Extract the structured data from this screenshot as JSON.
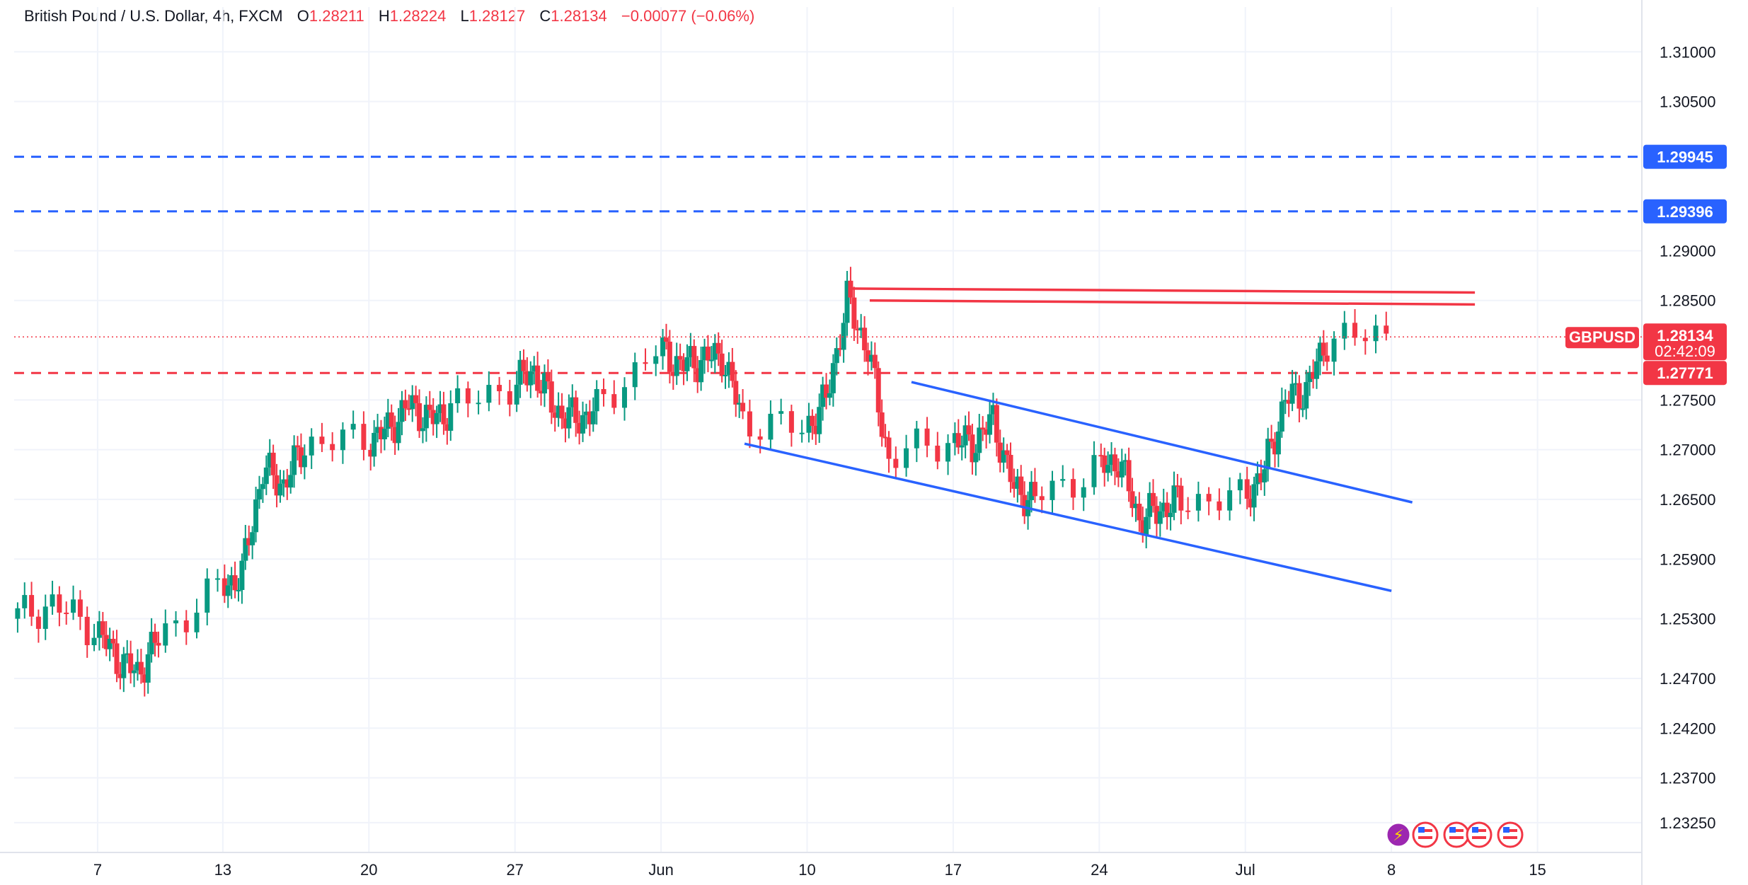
{
  "header": {
    "symbol": "British Pound / U.S. Dollar",
    "interval": "4h",
    "exchange": "FXCM",
    "open_label": "O",
    "open": "1.28211",
    "high_label": "H",
    "high": "1.28224",
    "low_label": "L",
    "low": "1.28127",
    "close_label": "C",
    "close": "1.28134",
    "change": "−0.00077 (−0.06%)"
  },
  "colors": {
    "up": "#089981",
    "down": "#f23645",
    "blue": "#2962ff",
    "red": "#f23645",
    "grid": "#f0f3fa"
  },
  "chart_data": {
    "type": "candlestick",
    "y_ticks": [
      "1.31000",
      "1.30500",
      "1.29000",
      "1.28500",
      "1.27500",
      "1.27000",
      "1.26500",
      "1.25900",
      "1.25300",
      "1.24700",
      "1.24200",
      "1.23700",
      "1.23250"
    ],
    "x_ticks": [
      {
        "label": "7",
        "date": "2024-05-07"
      },
      {
        "label": "13",
        "date": "2024-05-13"
      },
      {
        "label": "20",
        "date": "2024-05-20"
      },
      {
        "label": "27",
        "date": "2024-05-27"
      },
      {
        "label": "Jun",
        "date": "2024-06-03"
      },
      {
        "label": "10",
        "date": "2024-06-10"
      },
      {
        "label": "17",
        "date": "2024-06-17"
      },
      {
        "label": "24",
        "date": "2024-06-24"
      },
      {
        "label": "Jul",
        "date": "2024-07-01"
      },
      {
        "label": "8",
        "date": "2024-07-08"
      },
      {
        "label": "15",
        "date": "2024-07-15"
      }
    ],
    "y_range": [
      1.2295,
      1.3145
    ],
    "x_range": [
      "2024-05-03",
      "2024-07-20"
    ],
    "price_tags": [
      {
        "label": "1.29945",
        "value": 1.29945,
        "color": "#2962ff",
        "style": "dashed"
      },
      {
        "label": "1.29396",
        "value": 1.29396,
        "color": "#2962ff",
        "style": "dashed"
      },
      {
        "label": "1.27771",
        "value": 1.27771,
        "color": "#f23645",
        "style": "dashed"
      }
    ],
    "current": {
      "symbol": "GBPUSD",
      "price": "1.28134",
      "countdown": "02:42:09",
      "value": 1.28134
    },
    "trend_lines": [
      {
        "color": "#f23645",
        "from": {
          "date": "2024-06-12",
          "value": 1.2862
        },
        "to": {
          "date": "2024-07-12",
          "value": 1.2858
        }
      },
      {
        "color": "#f23645",
        "from": {
          "date": "2024-06-13",
          "value": 1.285
        },
        "to": {
          "date": "2024-07-12",
          "value": 1.2846
        }
      },
      {
        "color": "#2962ff",
        "from": {
          "date": "2024-06-15",
          "value": 1.2768
        },
        "to": {
          "date": "2024-07-09",
          "value": 1.2647
        }
      },
      {
        "color": "#2962ff",
        "from": {
          "date": "2024-06-07",
          "value": 1.2706
        },
        "to": {
          "date": "2024-07-08",
          "value": 1.2558
        }
      }
    ],
    "series": [
      {
        "name": "GBPUSD",
        "points": [
          {
            "date": "2024-05-03",
            "close": 1.253
          },
          {
            "date": "2024-05-05",
            "close": 1.2545
          },
          {
            "date": "2024-05-07",
            "close": 1.252
          },
          {
            "date": "2024-05-08",
            "close": 1.249
          },
          {
            "date": "2024-05-09",
            "close": 1.2475
          },
          {
            "date": "2024-05-10",
            "close": 1.251
          },
          {
            "date": "2024-05-13",
            "close": 1.256
          },
          {
            "date": "2024-05-14",
            "close": 1.2575
          },
          {
            "date": "2024-05-15",
            "close": 1.268
          },
          {
            "date": "2024-05-16",
            "close": 1.2665
          },
          {
            "date": "2024-05-17",
            "close": 1.2705
          },
          {
            "date": "2024-05-20",
            "close": 1.271
          },
          {
            "date": "2024-05-21",
            "close": 1.272
          },
          {
            "date": "2024-05-22",
            "close": 1.2745
          },
          {
            "date": "2024-05-23",
            "close": 1.273
          },
          {
            "date": "2024-05-24",
            "close": 1.274
          },
          {
            "date": "2024-05-27",
            "close": 1.2765
          },
          {
            "date": "2024-05-28",
            "close": 1.278
          },
          {
            "date": "2024-05-29",
            "close": 1.274
          },
          {
            "date": "2024-05-30",
            "close": 1.273
          },
          {
            "date": "2024-05-31",
            "close": 1.274
          },
          {
            "date": "2024-06-03",
            "close": 1.28
          },
          {
            "date": "2024-06-04",
            "close": 1.2785
          },
          {
            "date": "2024-06-05",
            "close": 1.279
          },
          {
            "date": "2024-06-06",
            "close": 1.2795
          },
          {
            "date": "2024-06-07",
            "close": 1.273
          },
          {
            "date": "2024-06-10",
            "close": 1.272
          },
          {
            "date": "2024-06-11",
            "close": 1.275
          },
          {
            "date": "2024-06-12",
            "close": 1.285
          },
          {
            "date": "2024-06-13",
            "close": 1.28
          },
          {
            "date": "2024-06-14",
            "close": 1.269
          },
          {
            "date": "2024-06-17",
            "close": 1.271
          },
          {
            "date": "2024-06-18",
            "close": 1.2705
          },
          {
            "date": "2024-06-19",
            "close": 1.273
          },
          {
            "date": "2024-06-20",
            "close": 1.266
          },
          {
            "date": "2024-06-21",
            "close": 1.265
          },
          {
            "date": "2024-06-24",
            "close": 1.268
          },
          {
            "date": "2024-06-25",
            "close": 1.269
          },
          {
            "date": "2024-06-26",
            "close": 1.263
          },
          {
            "date": "2024-06-27",
            "close": 1.264
          },
          {
            "date": "2024-06-28",
            "close": 1.265
          },
          {
            "date": "2024-07-01",
            "close": 1.265
          },
          {
            "date": "2024-07-02",
            "close": 1.268
          },
          {
            "date": "2024-07-03",
            "close": 1.275
          },
          {
            "date": "2024-07-04",
            "close": 1.276
          },
          {
            "date": "2024-07-05",
            "close": 1.281
          },
          {
            "date": "2024-07-08",
            "close": 1.2815
          }
        ]
      }
    ]
  }
}
